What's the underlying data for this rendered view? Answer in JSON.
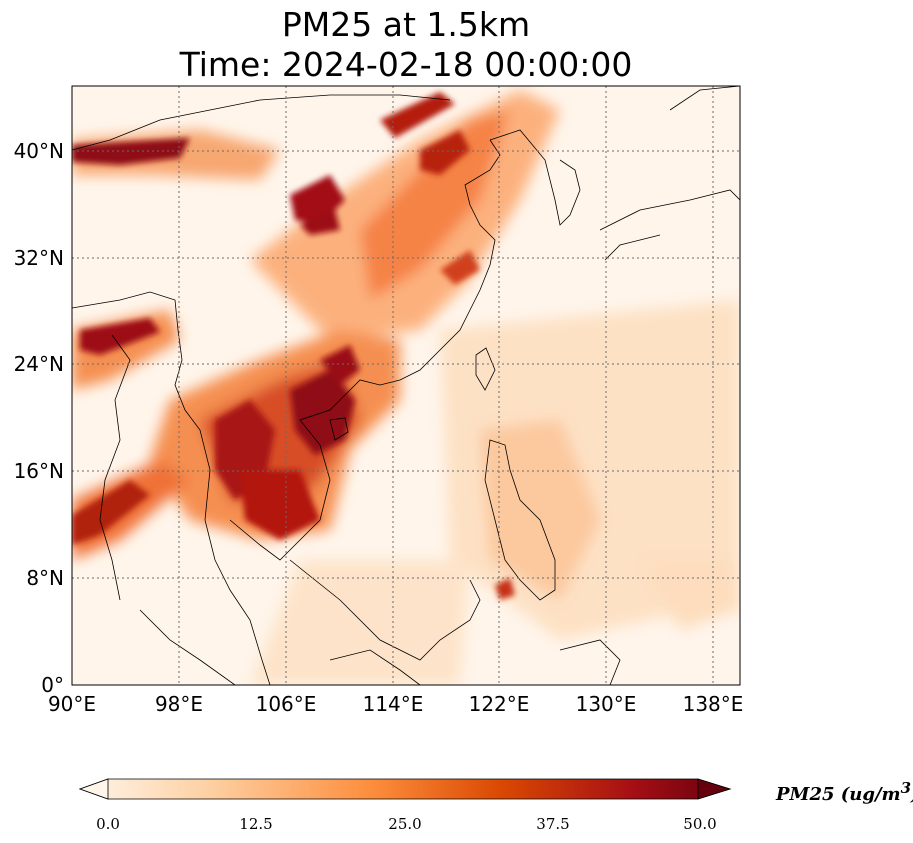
{
  "title": {
    "line1": "PM25 at 1.5km",
    "line2": "Time: 2024-02-18 00:00:00"
  },
  "map": {
    "lon_range": [
      90,
      139
    ],
    "lat_range": [
      0,
      44.5
    ],
    "gridline_style": "dotted",
    "lat_ticks": [
      {
        "value": 40,
        "label": "40°N"
      },
      {
        "value": 32,
        "label": "32°N"
      },
      {
        "value": 24,
        "label": "24°N"
      },
      {
        "value": 16,
        "label": "16°N"
      },
      {
        "value": 8,
        "label": "8°N"
      },
      {
        "value": 0,
        "label": "0°"
      }
    ],
    "lon_ticks": [
      {
        "value": 90,
        "label": "90°E"
      },
      {
        "value": 98,
        "label": "98°E"
      },
      {
        "value": 106,
        "label": "106°E"
      },
      {
        "value": 114,
        "label": "114°E"
      },
      {
        "value": 122,
        "label": "122°E"
      },
      {
        "value": 130,
        "label": "130°E"
      },
      {
        "value": 138,
        "label": "138°E"
      }
    ],
    "field_variable": "PM25",
    "high_concentration_areas": [
      {
        "region": "Indochina / South China",
        "approx_value": 45
      },
      {
        "region": "North China band",
        "approx_value": 40
      },
      {
        "region": "Myanmar / Bay of Bengal coast",
        "approx_value": 42
      },
      {
        "region": "Mongolia / northwest",
        "approx_value": 40
      }
    ]
  },
  "colorbar": {
    "label": "PM25 (ug/m",
    "label_superscript": "3",
    "label_close": ")",
    "colormap": [
      "#fff5eb",
      "#fdd0a2",
      "#fd8d3c",
      "#d94801",
      "#a50f15",
      "#67000d"
    ],
    "range": [
      0,
      50
    ],
    "extend": "both",
    "ticks": [
      "0.0",
      "12.5",
      "25.0",
      "37.5",
      "50.0"
    ]
  }
}
